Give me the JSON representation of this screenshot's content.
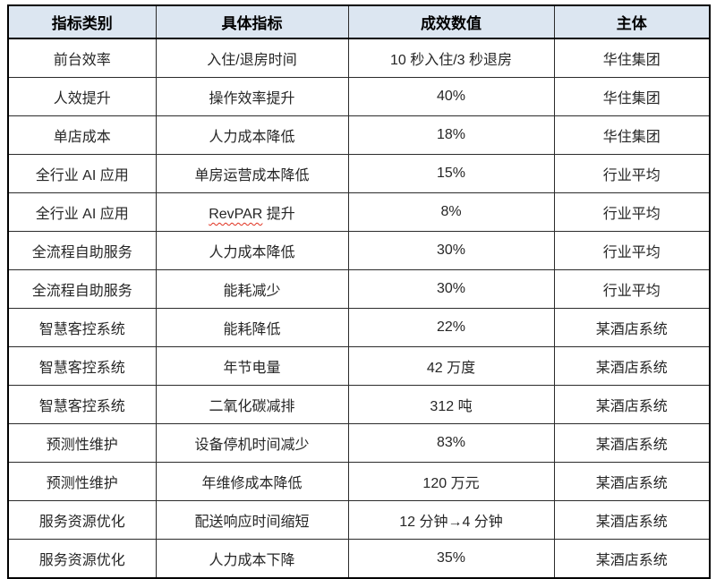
{
  "table": {
    "headers": [
      "指标类别",
      "具体指标",
      "成效数值",
      "主体"
    ],
    "rows": [
      [
        "前台效率",
        "入住/退房时间",
        "10 秒入住/3 秒退房",
        "华住集团"
      ],
      [
        "人效提升",
        "操作效率提升",
        "40%",
        "华住集团"
      ],
      [
        "单店成本",
        "人力成本降低",
        "18%",
        "华住集团"
      ],
      [
        "全行业 AI 应用",
        "单房运营成本降低",
        "15%",
        "行业平均"
      ],
      [
        "全行业 AI 应用",
        {
          "text": "RevPAR 提升",
          "wavy": "RevPAR"
        },
        "8%",
        "行业平均"
      ],
      [
        "全流程自助服务",
        "人力成本降低",
        "30%",
        "行业平均"
      ],
      [
        "全流程自助服务",
        "能耗减少",
        "30%",
        "行业平均"
      ],
      [
        "智慧客控系统",
        "能耗降低",
        "22%",
        "某酒店系统"
      ],
      [
        "智慧客控系统",
        "年节电量",
        "42 万度",
        "某酒店系统"
      ],
      [
        "智慧客控系统",
        "二氧化碳减排",
        "312 吨",
        "某酒店系统"
      ],
      [
        "预测性维护",
        "设备停机时间减少",
        "83%",
        "某酒店系统"
      ],
      [
        "预测性维护",
        "年维修成本降低",
        "120 万元",
        "某酒店系统"
      ],
      [
        "服务资源优化",
        "配送响应时间缩短",
        "12 分钟→4 分钟",
        "某酒店系统"
      ],
      [
        "服务资源优化",
        "人力成本下降",
        "35%",
        "某酒店系统"
      ]
    ],
    "colors": {
      "header_bg": "#dce6f1",
      "border_outer": "#000000",
      "border_inner": "#2b2b2b",
      "header_text": "#000000",
      "body_text": "#262626",
      "spellcheck_underline": "#e0301e",
      "page_bg": "#ffffff"
    }
  }
}
